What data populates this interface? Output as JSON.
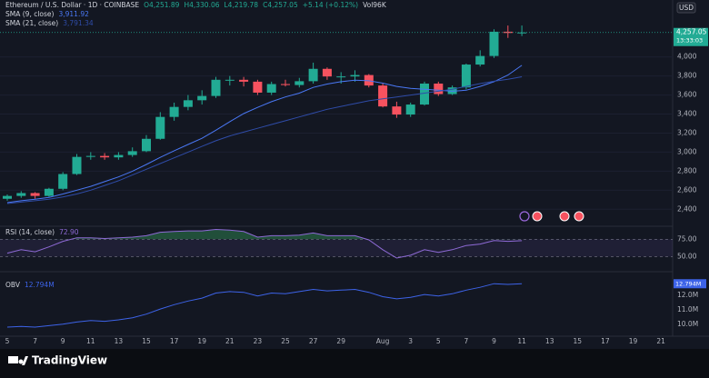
{
  "chart_data": [
    {
      "type": "candlestick",
      "title": "Ethereum / U.S. Dollar · 1D · COINBASE",
      "ohlc_labels": [
        "O4,251.89",
        "H4,330.06",
        "L4,219.78",
        "C4,257.05",
        "+5.14 (+0.12%)"
      ],
      "volume_label": "Vol96K",
      "currency": "USD",
      "countdown": "13:33:03",
      "last_price": {
        "value": 4257.05,
        "label": "4,257.05"
      },
      "categories": [
        "5",
        null,
        "7",
        null,
        "9",
        null,
        "11",
        null,
        "13",
        null,
        "15",
        null,
        "17",
        null,
        "19",
        null,
        "21",
        null,
        "23",
        null,
        "25",
        null,
        "27",
        null,
        "29",
        null,
        null,
        "Aug",
        null,
        "3",
        null,
        "5",
        null,
        "7",
        null,
        "9",
        null,
        "11",
        null,
        "13",
        null,
        "15",
        null,
        "17",
        null,
        "19",
        null,
        "21"
      ],
      "open": [
        2510,
        2540,
        2570,
        2540,
        2615,
        2770,
        2950,
        2960,
        2945,
        2970,
        3010,
        3140,
        3370,
        3475,
        3545,
        3590,
        3760,
        3760,
        3740,
        3625,
        3715,
        3705,
        3745,
        3875,
        3795,
        3795,
        3810,
        3700,
        3480,
        3395,
        3500,
        3720,
        3610,
        3680,
        3920,
        4010,
        4265,
        4251.89,
        null,
        null,
        null,
        null,
        null,
        null,
        null,
        null,
        null,
        null
      ],
      "high": [
        2555,
        2590,
        2580,
        2625,
        2790,
        2980,
        3000,
        2990,
        3000,
        3050,
        3180,
        3420,
        3520,
        3600,
        3650,
        3790,
        3800,
        3790,
        3760,
        3740,
        3760,
        3780,
        3940,
        3890,
        3840,
        3860,
        3820,
        3720,
        3530,
        3520,
        3740,
        3740,
        3700,
        3930,
        4070,
        4290,
        4330,
        4330.06,
        null,
        null,
        null,
        null,
        null,
        null,
        null,
        null,
        null,
        null
      ],
      "low": [
        2490,
        2520,
        2510,
        2530,
        2600,
        2760,
        2920,
        2920,
        2920,
        2950,
        3000,
        3130,
        3330,
        3440,
        3500,
        3570,
        3700,
        3690,
        3600,
        3600,
        3690,
        3680,
        3720,
        3760,
        3720,
        3740,
        3680,
        3470,
        3360,
        3370,
        3490,
        3590,
        3600,
        3660,
        3900,
        3990,
        4200,
        4219.78,
        null,
        null,
        null,
        null,
        null,
        null,
        null,
        null,
        null,
        null
      ],
      "close": [
        2540,
        2570,
        2540,
        2615,
        2770,
        2950,
        2960,
        2945,
        2970,
        3010,
        3140,
        3370,
        3475,
        3545,
        3590,
        3760,
        3760,
        3740,
        3625,
        3715,
        3705,
        3745,
        3875,
        3795,
        3795,
        3810,
        3700,
        3480,
        3395,
        3500,
        3720,
        3610,
        3680,
        3920,
        4010,
        4265,
        4251.89,
        4257.05,
        null,
        null,
        null,
        null,
        null,
        null,
        null,
        null,
        null,
        null
      ],
      "up_color": "#22ab94",
      "down_color": "#f7525f",
      "series": [
        {
          "name": "SMA (9, close)",
          "color": "#4a78f5",
          "value_label": "3,911.92",
          "values": [
            2470,
            2490,
            2505,
            2525,
            2560,
            2600,
            2640,
            2690,
            2740,
            2800,
            2870,
            2945,
            3015,
            3080,
            3145,
            3230,
            3320,
            3405,
            3470,
            3530,
            3580,
            3620,
            3680,
            3715,
            3740,
            3755,
            3750,
            3725,
            3690,
            3670,
            3660,
            3650,
            3640,
            3650,
            3690,
            3740,
            3810,
            3911.92,
            null,
            null,
            null,
            null,
            null,
            null,
            null,
            null,
            null,
            null
          ]
        },
        {
          "name": "SMA (21, close)",
          "color": "#2f4ca8",
          "value_label": "3,791.34",
          "values": [
            2460,
            2475,
            2490,
            2505,
            2530,
            2560,
            2600,
            2650,
            2700,
            2760,
            2820,
            2880,
            2940,
            3000,
            3060,
            3120,
            3170,
            3210,
            3250,
            3290,
            3330,
            3370,
            3410,
            3450,
            3480,
            3510,
            3540,
            3560,
            3580,
            3600,
            3620,
            3640,
            3660,
            3690,
            3720,
            3745,
            3765,
            3791.34,
            null,
            null,
            null,
            null,
            null,
            null,
            null,
            null,
            null,
            null
          ]
        }
      ],
      "ylim": [
        2250,
        4560
      ],
      "yticks": [
        {
          "value": 2400,
          "label": "2,400"
        },
        {
          "value": 2600,
          "label": "2,600"
        },
        {
          "value": 2800,
          "label": "2,800"
        },
        {
          "value": 3000,
          "label": "3,000"
        },
        {
          "value": 3200,
          "label": "3,200"
        },
        {
          "value": 3400,
          "label": "3,400"
        },
        {
          "value": 3600,
          "label": "3,600"
        },
        {
          "value": 3800,
          "label": "3,800"
        },
        {
          "value": 4000,
          "label": "4,000"
        }
      ],
      "grid": true
    },
    {
      "type": "line",
      "series": [
        {
          "name": "RSI (14, close)",
          "color": "#8e6ad6",
          "value_label": "72.90",
          "values": [
            55,
            60,
            57,
            64,
            72,
            77,
            77,
            76,
            77,
            78,
            80,
            85,
            86,
            87,
            87,
            89,
            88,
            86,
            78,
            80,
            80,
            81,
            84,
            80,
            80,
            80,
            74,
            60,
            48,
            52,
            60,
            56,
            60,
            66,
            68,
            73,
            72,
            72.9,
            null,
            null,
            null,
            null,
            null,
            null,
            null,
            null,
            null,
            null
          ]
        }
      ],
      "band_color": "#7e57c2",
      "overbought_color": "#2e7d4f",
      "ylim": [
        31,
        91
      ],
      "yticks": [
        {
          "value": 50,
          "label": "50.00"
        },
        {
          "value": 75,
          "label": "75.00"
        }
      ]
    },
    {
      "type": "line",
      "series": [
        {
          "name": "OBV",
          "color": "#3d63e8",
          "value_label": "12.794M",
          "values": [
            9.8,
            9.85,
            9.8,
            9.9,
            10.0,
            10.15,
            10.25,
            10.2,
            10.3,
            10.45,
            10.7,
            11.05,
            11.35,
            11.6,
            11.8,
            12.15,
            12.25,
            12.2,
            11.95,
            12.15,
            12.1,
            12.25,
            12.4,
            12.3,
            12.35,
            12.4,
            12.2,
            11.9,
            11.75,
            11.85,
            12.05,
            11.95,
            12.1,
            12.35,
            12.55,
            12.8,
            12.75,
            12.794,
            null,
            null,
            null,
            null,
            null,
            null,
            null,
            null,
            null,
            null
          ]
        }
      ],
      "ylim": [
        9.3,
        13.5
      ],
      "yticks": [
        {
          "value": 10,
          "label": "10.0M"
        },
        {
          "value": 11,
          "label": "11.0M"
        },
        {
          "value": 12,
          "label": "12.0M"
        }
      ]
    }
  ],
  "footer": {
    "brand": "TradingView"
  }
}
